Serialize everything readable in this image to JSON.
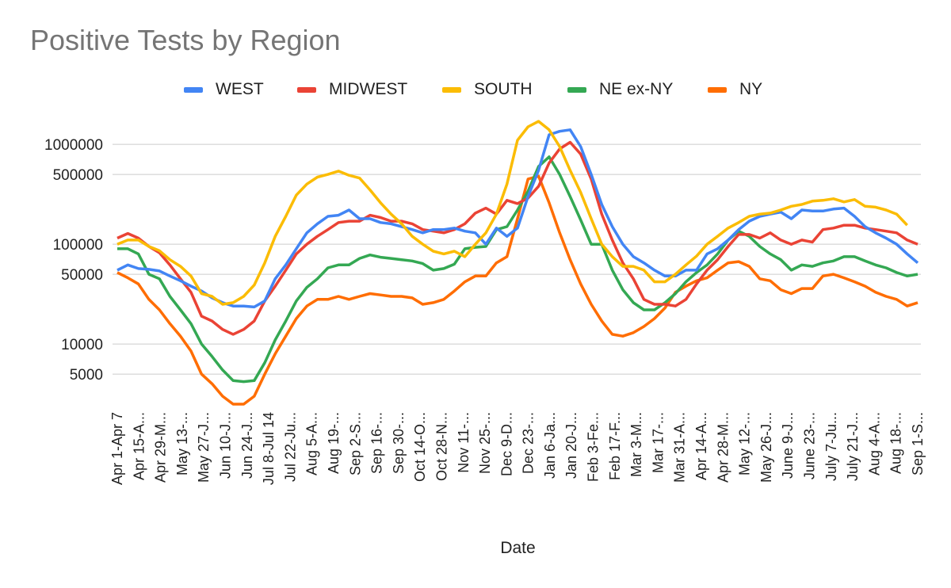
{
  "chart_data": {
    "type": "line",
    "title": "Positive Tests by Region",
    "xlabel": "Date",
    "ylabel": "",
    "yscale": "log",
    "ylim": [
      2500,
      1800000
    ],
    "yticks": [
      1000000,
      500000,
      100000,
      50000,
      10000,
      5000
    ],
    "ytick_labels": [
      "1000000",
      "500000",
      "100000",
      "50000",
      "10000",
      "5000"
    ],
    "grid": true,
    "legend_position": "top",
    "x_tick_labels": [
      "Apr 1-Apr 7",
      "Apr 15-A...",
      "Apr 29-M...",
      "May 13-...",
      "May 27-J...",
      "Jun 10-J...",
      "Jun 24-J...",
      "Jul 8-Jul 14",
      "Jul 22-Ju...",
      "Aug 5-A...",
      "Aug 19-...",
      "Sep 2-S...",
      "Sep 16-...",
      "Sep 30-...",
      "Oct 14-O...",
      "Oct 28-N...",
      "Nov 11-...",
      "Nov 25-...",
      "Dec 9-D...",
      "Dec 23-...",
      "Jan 6-Ja...",
      "Jan 20-J...",
      "Feb 3-Fe...",
      "Feb 17-F...",
      "Mar 3-M...",
      "Mar 17-...",
      "Mar 31-A...",
      "Apr 14-A...",
      "Apr 28-M...",
      "May 12-...",
      "May 26-J...",
      "June 9-J...",
      "June 23-...",
      "July 7-Ju...",
      "July 21-J...",
      "Aug 4-A...",
      "Aug 18-...",
      "Sep 1-S..."
    ],
    "series": [
      {
        "name": "WEST",
        "color": "#4285f4",
        "values": [
          55000,
          62000,
          57000,
          56000,
          54000,
          48000,
          43000,
          38000,
          34000,
          29000,
          26000,
          24000,
          24000,
          23500,
          27000,
          45000,
          62000,
          90000,
          130000,
          160000,
          190000,
          195000,
          220000,
          180000,
          180000,
          165000,
          160000,
          150000,
          140000,
          130000,
          140000,
          140000,
          145000,
          135000,
          130000,
          100000,
          145000,
          120000,
          145000,
          300000,
          550000,
          1250000,
          1350000,
          1400000,
          950000,
          500000,
          250000,
          150000,
          100000,
          75000,
          65000,
          55000,
          48000,
          48000,
          55000,
          55000,
          80000,
          90000,
          110000,
          140000,
          170000,
          190000,
          200000,
          210000,
          180000,
          220000,
          215000,
          215000,
          225000,
          230000,
          190000,
          150000,
          130000,
          115000,
          100000,
          80000,
          65000
        ]
      },
      {
        "name": "MIDWEST",
        "color": "#ea4335",
        "values": [
          115000,
          128000,
          115000,
          95000,
          82000,
          62000,
          45000,
          33000,
          19000,
          17000,
          14000,
          12500,
          14000,
          17000,
          27000,
          38000,
          55000,
          80000,
          100000,
          120000,
          140000,
          165000,
          170000,
          170000,
          195000,
          185000,
          170000,
          170000,
          160000,
          140000,
          135000,
          130000,
          140000,
          160000,
          205000,
          230000,
          200000,
          275000,
          255000,
          290000,
          380000,
          650000,
          900000,
          1050000,
          800000,
          450000,
          200000,
          110000,
          65000,
          45000,
          28000,
          25000,
          25000,
          24000,
          28000,
          40000,
          55000,
          70000,
          95000,
          125000,
          125000,
          115000,
          130000,
          110000,
          100000,
          110000,
          105000,
          140000,
          145000,
          155000,
          155000,
          145000,
          140000,
          135000,
          130000,
          110000,
          100000
        ]
      },
      {
        "name": "SOUTH",
        "color": "#fbbc04",
        "values": [
          100000,
          110000,
          110000,
          95000,
          86000,
          70000,
          60000,
          48000,
          32000,
          30000,
          25000,
          26000,
          30000,
          39000,
          65000,
          120000,
          190000,
          310000,
          400000,
          470000,
          500000,
          540000,
          490000,
          460000,
          350000,
          260000,
          200000,
          160000,
          120000,
          100000,
          85000,
          80000,
          85000,
          75000,
          100000,
          130000,
          200000,
          400000,
          1100000,
          1500000,
          1700000,
          1400000,
          950000,
          550000,
          330000,
          180000,
          100000,
          75000,
          60000,
          60000,
          55000,
          42000,
          42000,
          50000,
          62000,
          76000,
          100000,
          120000,
          145000,
          165000,
          190000,
          200000,
          205000,
          220000,
          240000,
          250000,
          270000,
          275000,
          285000,
          265000,
          280000,
          240000,
          235000,
          220000,
          200000,
          155000
        ]
      },
      {
        "name": "NE ex-NY",
        "color": "#34a853",
        "values": [
          90000,
          90000,
          80000,
          50000,
          45000,
          30000,
          22000,
          16000,
          10000,
          7500,
          5500,
          4300,
          4200,
          4300,
          6500,
          11000,
          17000,
          27000,
          37000,
          45000,
          58000,
          62000,
          62000,
          72000,
          78000,
          74000,
          72000,
          70000,
          68000,
          64000,
          55000,
          57000,
          63000,
          90000,
          93000,
          95000,
          140000,
          150000,
          220000,
          340000,
          600000,
          750000,
          500000,
          300000,
          175000,
          100000,
          100000,
          55000,
          35000,
          26000,
          22000,
          22000,
          26000,
          32000,
          42000,
          52000,
          62000,
          80000,
          110000,
          135000,
          120000,
          95000,
          80000,
          70000,
          55000,
          62000,
          60000,
          65000,
          68000,
          75000,
          75000,
          68000,
          62000,
          58000,
          52000,
          48000,
          50000
        ]
      },
      {
        "name": "NY",
        "color": "#ff6d01",
        "values": [
          52000,
          46000,
          40000,
          28000,
          22000,
          16000,
          12000,
          8500,
          5000,
          4000,
          3000,
          2500,
          2500,
          3000,
          5000,
          8000,
          12000,
          18000,
          24000,
          28000,
          28000,
          30000,
          28000,
          30000,
          32000,
          31000,
          30000,
          30000,
          29000,
          25000,
          26000,
          28000,
          34000,
          42000,
          48000,
          48000,
          65000,
          75000,
          180000,
          450000,
          480000,
          260000,
          130000,
          70000,
          40000,
          25000,
          17000,
          12500,
          12000,
          13000,
          15000,
          18000,
          23000,
          33000,
          38000,
          43000,
          46000,
          55000,
          65000,
          67000,
          60000,
          45000,
          43000,
          35000,
          32000,
          36000,
          36000,
          48000,
          50000,
          46000,
          42000,
          38000,
          33000,
          30000,
          28000,
          24000,
          26000
        ]
      }
    ]
  }
}
